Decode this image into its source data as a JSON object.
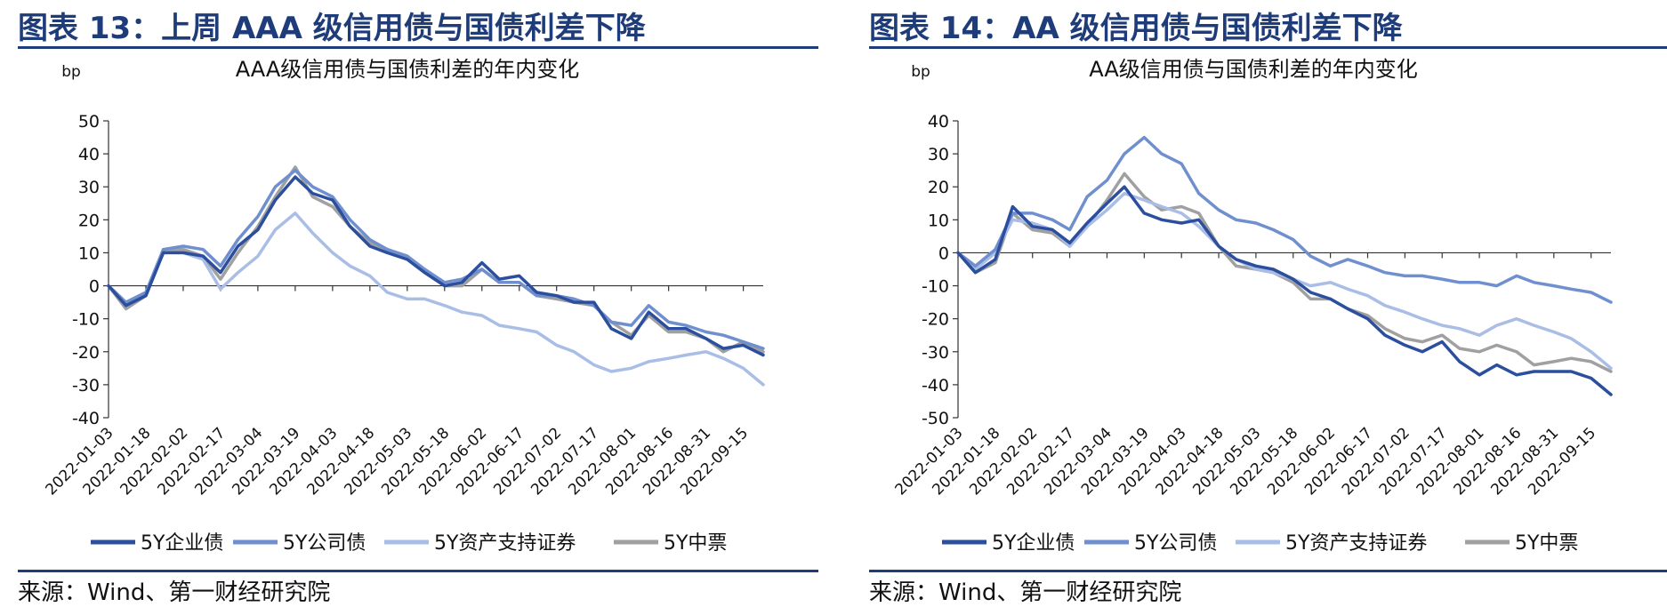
{
  "panels": [
    {
      "heading": "图表 13：上周 AAA 级信用债与国债利差下降",
      "source": "来源：Wind、第一财经研究院"
    },
    {
      "heading": "图表 14：AA 级信用债与国债利差下降",
      "source": "来源：Wind、第一财经研究院"
    }
  ],
  "chart_data": [
    {
      "type": "line",
      "title": "AAA级信用债与国债利差的年内变化",
      "ylabel": "bp",
      "xlabel": "",
      "ylim": [
        -40,
        50
      ],
      "yticks": [
        50,
        40,
        30,
        20,
        10,
        0,
        -10,
        -20,
        -30,
        -40
      ],
      "x_ticks": [
        "2022-01-03",
        "2022-01-18",
        "2022-02-02",
        "2022-02-17",
        "2022-03-04",
        "2022-03-19",
        "2022-04-03",
        "2022-04-18",
        "2022-05-03",
        "2022-05-18",
        "2022-06-02",
        "2022-06-17",
        "2022-07-02",
        "2022-07-17",
        "2022-08-01",
        "2022-08-16",
        "2022-08-31",
        "2022-09-15"
      ],
      "x": [
        "2022-01-03",
        "2022-01-10",
        "2022-01-18",
        "2022-01-25",
        "2022-02-02",
        "2022-02-10",
        "2022-02-17",
        "2022-02-24",
        "2022-03-04",
        "2022-03-11",
        "2022-03-19",
        "2022-03-26",
        "2022-04-03",
        "2022-04-10",
        "2022-04-18",
        "2022-04-25",
        "2022-05-03",
        "2022-05-10",
        "2022-05-18",
        "2022-05-25",
        "2022-06-02",
        "2022-06-09",
        "2022-06-17",
        "2022-06-24",
        "2022-07-02",
        "2022-07-09",
        "2022-07-17",
        "2022-07-24",
        "2022-08-01",
        "2022-08-08",
        "2022-08-16",
        "2022-08-23",
        "2022-08-31",
        "2022-09-07",
        "2022-09-15",
        "2022-09-23"
      ],
      "legend_position": "bottom",
      "grid": false,
      "series": [
        {
          "name": "5Y企业债",
          "color": "#2b4f9e",
          "width": 3.5,
          "values": [
            0,
            -6,
            -3,
            10,
            10,
            9,
            4,
            12,
            17,
            26,
            33,
            28,
            26,
            18,
            12,
            10,
            8,
            4,
            0,
            1,
            7,
            2,
            3,
            -2,
            -3,
            -5,
            -5,
            -13,
            -16,
            -8,
            -13,
            -13,
            -16,
            -19,
            -18,
            -21
          ]
        },
        {
          "name": "5Y公司债",
          "color": "#6f8fce",
          "width": 3.5,
          "values": [
            0,
            -5,
            -2,
            11,
            12,
            11,
            6,
            14,
            21,
            30,
            35,
            30,
            27,
            20,
            14,
            11,
            9,
            5,
            1,
            2,
            5,
            1,
            1,
            -3,
            -3,
            -4,
            -6,
            -11,
            -12,
            -6,
            -11,
            -12,
            -14,
            -15,
            -17,
            -19
          ]
        },
        {
          "name": "5Y资产支持证券",
          "color": "#a9bde6",
          "width": 3.5,
          "values": [
            0,
            -6,
            -2,
            10,
            10,
            8,
            -1,
            4,
            9,
            17,
            22,
            16,
            10,
            6,
            3,
            -2,
            -4,
            -4,
            -6,
            -8,
            -9,
            -12,
            -13,
            -14,
            -18,
            -20,
            -24,
            -26,
            -25,
            -23,
            -22,
            -21,
            -20,
            -22,
            -25,
            -30
          ]
        },
        {
          "name": "5Y中票",
          "color": "#a0a0a0",
          "width": 3.5,
          "values": [
            0,
            -7,
            -3,
            11,
            11,
            9,
            2,
            10,
            18,
            27,
            36,
            27,
            24,
            18,
            13,
            11,
            9,
            4,
            0,
            0,
            5,
            1,
            1,
            -3,
            -4,
            -5,
            -6,
            -11,
            -15,
            -9,
            -14,
            -14,
            -16,
            -20,
            -17,
            -20
          ]
        }
      ]
    },
    {
      "type": "line",
      "title": "AA级信用债与国债利差的年内变化",
      "ylabel": "bp",
      "xlabel": "",
      "ylim": [
        -50,
        40
      ],
      "yticks": [
        40,
        30,
        20,
        10,
        0,
        -10,
        -20,
        -30,
        -40,
        -50
      ],
      "x_ticks": [
        "2022-01-03",
        "2022-01-18",
        "2022-02-02",
        "2022-02-17",
        "2022-03-04",
        "2022-03-19",
        "2022-04-03",
        "2022-04-18",
        "2022-05-03",
        "2022-05-18",
        "2022-06-02",
        "2022-06-17",
        "2022-07-02",
        "2022-07-17",
        "2022-08-01",
        "2022-08-16",
        "2022-08-31",
        "2022-09-15"
      ],
      "x": [
        "2022-01-03",
        "2022-01-10",
        "2022-01-18",
        "2022-01-25",
        "2022-02-02",
        "2022-02-10",
        "2022-02-17",
        "2022-02-24",
        "2022-03-04",
        "2022-03-11",
        "2022-03-19",
        "2022-03-26",
        "2022-04-03",
        "2022-04-10",
        "2022-04-18",
        "2022-04-25",
        "2022-05-03",
        "2022-05-10",
        "2022-05-18",
        "2022-05-25",
        "2022-06-02",
        "2022-06-09",
        "2022-06-17",
        "2022-06-24",
        "2022-07-02",
        "2022-07-09",
        "2022-07-17",
        "2022-07-24",
        "2022-08-01",
        "2022-08-08",
        "2022-08-16",
        "2022-08-23",
        "2022-08-31",
        "2022-09-07",
        "2022-09-15",
        "2022-09-23"
      ],
      "legend_position": "bottom",
      "grid": false,
      "series": [
        {
          "name": "5Y企业债",
          "color": "#2b4f9e",
          "width": 3.5,
          "values": [
            0,
            -6,
            -2,
            14,
            8,
            7,
            3,
            9,
            15,
            20,
            12,
            10,
            9,
            10,
            2,
            -2,
            -4,
            -5,
            -8,
            -12,
            -14,
            -17,
            -20,
            -25,
            -28,
            -30,
            -27,
            -33,
            -37,
            -34,
            -37,
            -36,
            -36,
            -36,
            -38,
            -43
          ]
        },
        {
          "name": "5Y公司债",
          "color": "#6f8fce",
          "width": 3.5,
          "values": [
            0,
            -4,
            1,
            12,
            12,
            10,
            7,
            17,
            22,
            30,
            35,
            30,
            27,
            18,
            13,
            10,
            9,
            7,
            4,
            -1,
            -4,
            -2,
            -4,
            -6,
            -7,
            -7,
            -8,
            -9,
            -9,
            -10,
            -7,
            -9,
            -10,
            -11,
            -12,
            -15
          ]
        },
        {
          "name": "5Y资产支持证券",
          "color": "#a9bde6",
          "width": 3.5,
          "values": [
            0,
            -5,
            0,
            10,
            9,
            7,
            2,
            8,
            13,
            18,
            16,
            14,
            12,
            8,
            2,
            -2,
            -5,
            -6,
            -8,
            -10,
            -9,
            -11,
            -13,
            -16,
            -18,
            -20,
            -22,
            -23,
            -25,
            -22,
            -20,
            -22,
            -24,
            -26,
            -30,
            -35
          ]
        },
        {
          "name": "5Y中票",
          "color": "#a0a0a0",
          "width": 3.5,
          "values": [
            0,
            -6,
            -3,
            12,
            7,
            6,
            2,
            8,
            16,
            24,
            17,
            13,
            14,
            12,
            2,
            -4,
            -5,
            -6,
            -9,
            -14,
            -14,
            -17,
            -19,
            -23,
            -26,
            -27,
            -25,
            -29,
            -30,
            -28,
            -30,
            -34,
            -33,
            -32,
            -33,
            -36
          ]
        }
      ]
    }
  ]
}
